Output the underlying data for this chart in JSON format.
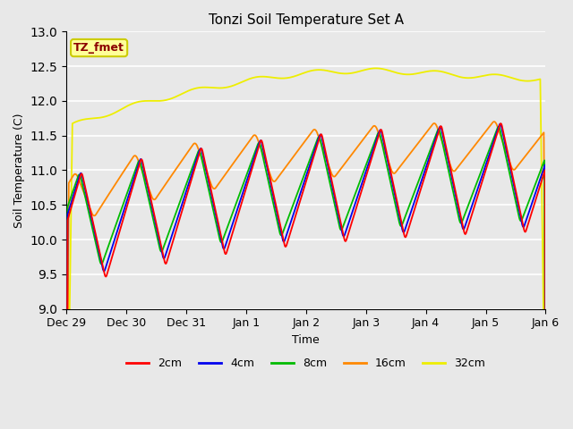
{
  "title": "Tonzi Soil Temperature Set A",
  "xlabel": "Time",
  "ylabel": "Soil Temperature (C)",
  "ylim": [
    9.0,
    13.0
  ],
  "yticks": [
    9.0,
    9.5,
    10.0,
    10.5,
    11.0,
    11.5,
    12.0,
    12.5,
    13.0
  ],
  "annotation_text": "TZ_fmet",
  "annotation_color": "#8B0000",
  "annotation_bg": "#FFFF99",
  "annotation_border": "#CCCC00",
  "colors": {
    "2cm": "#FF0000",
    "4cm": "#0000EE",
    "8cm": "#00BB00",
    "16cm": "#FF8800",
    "32cm": "#EEEE00"
  },
  "axes_facecolor": "#E8E8E8",
  "fig_facecolor": "#E8E8E8",
  "grid_color": "#FFFFFF",
  "x_tick_positions": [
    0,
    1,
    2,
    3,
    4,
    5,
    6,
    7,
    8
  ],
  "x_tick_labels": [
    "Dec 29",
    "Dec 30",
    "Dec 31",
    "Jan 1",
    "Jan 2",
    "Jan 3",
    "Jan 4",
    "Jan 5",
    "Jan 6"
  ],
  "xlim": [
    0,
    8
  ]
}
